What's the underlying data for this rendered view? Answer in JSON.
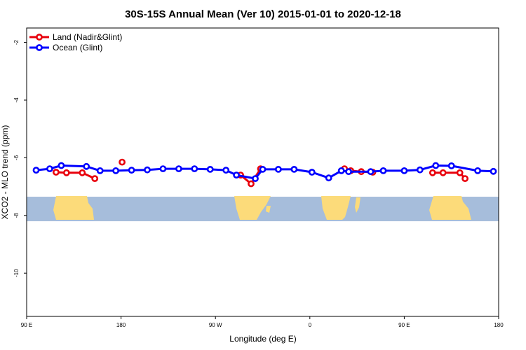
{
  "chart_data": {
    "type": "line",
    "title": "30S-15S Annual Mean (Ver 10)   2015-01-01 to 2020-12-18",
    "xlabel": "Longitude (deg E)",
    "ylabel": "XCO2 - MLO trend (ppm)",
    "xlim": [
      90,
      540
    ],
    "ylim": [
      -11.5,
      -1.5
    ],
    "x_ticks": [
      {
        "value": 90,
        "label": "90 E"
      },
      {
        "value": 180,
        "label": "180"
      },
      {
        "value": 270,
        "label": "90 W"
      },
      {
        "value": 360,
        "label": "0"
      },
      {
        "value": 450,
        "label": "90 E"
      },
      {
        "value": 540,
        "label": "180"
      }
    ],
    "y_ticks": [
      {
        "value": -2,
        "label": "-2"
      },
      {
        "value": -4,
        "label": "-4"
      },
      {
        "value": -6,
        "label": "-6"
      },
      {
        "value": -8,
        "label": "-8"
      },
      {
        "value": -10,
        "label": "-10"
      }
    ],
    "legend_position": "top-left",
    "grid": false,
    "map_strip": {
      "y_range": [
        -8.2,
        -7.35
      ],
      "ocean_color": "#a6bddb",
      "land_color": "#fcdb7a"
    },
    "series": [
      {
        "name": "Land (Nadir&Glint)",
        "color": "#e8000b",
        "segments": [
          {
            "x": [
              118,
              128,
              143,
              155
            ],
            "y": [
              -6.5,
              -6.52,
              -6.52,
              -6.72
            ]
          },
          {
            "x": [
              181
            ],
            "y": [
              -6.15
            ]
          },
          {
            "x": [
              294,
              304,
              313
            ],
            "y": [
              -6.6,
              -6.9,
              -6.38
            ]
          },
          {
            "x": [
              393,
              399,
              409,
              420
            ],
            "y": [
              -6.38,
              -6.45,
              -6.48,
              -6.5
            ]
          },
          {
            "x": [
              477,
              487,
              503,
              508
            ],
            "y": [
              -6.52,
              -6.52,
              -6.52,
              -6.72
            ]
          }
        ]
      },
      {
        "name": "Ocean (Glint)",
        "color": "#0000ff",
        "segments": [
          {
            "x": [
              99,
              112,
              123,
              147,
              160,
              175,
              190,
              205,
              220,
              235,
              250,
              265,
              280,
              290,
              308,
              315,
              330,
              345,
              362,
              378,
              390,
              397,
              418,
              430,
              450,
              465,
              480,
              495,
              520,
              535
            ],
            "y": [
              -6.43,
              -6.38,
              -6.27,
              -6.3,
              -6.45,
              -6.45,
              -6.43,
              -6.42,
              -6.38,
              -6.38,
              -6.38,
              -6.4,
              -6.43,
              -6.6,
              -6.72,
              -6.4,
              -6.4,
              -6.4,
              -6.5,
              -6.7,
              -6.45,
              -6.48,
              -6.48,
              -6.45,
              -6.45,
              -6.42,
              -6.27,
              -6.28,
              -6.45,
              -6.47
            ]
          }
        ]
      }
    ]
  }
}
